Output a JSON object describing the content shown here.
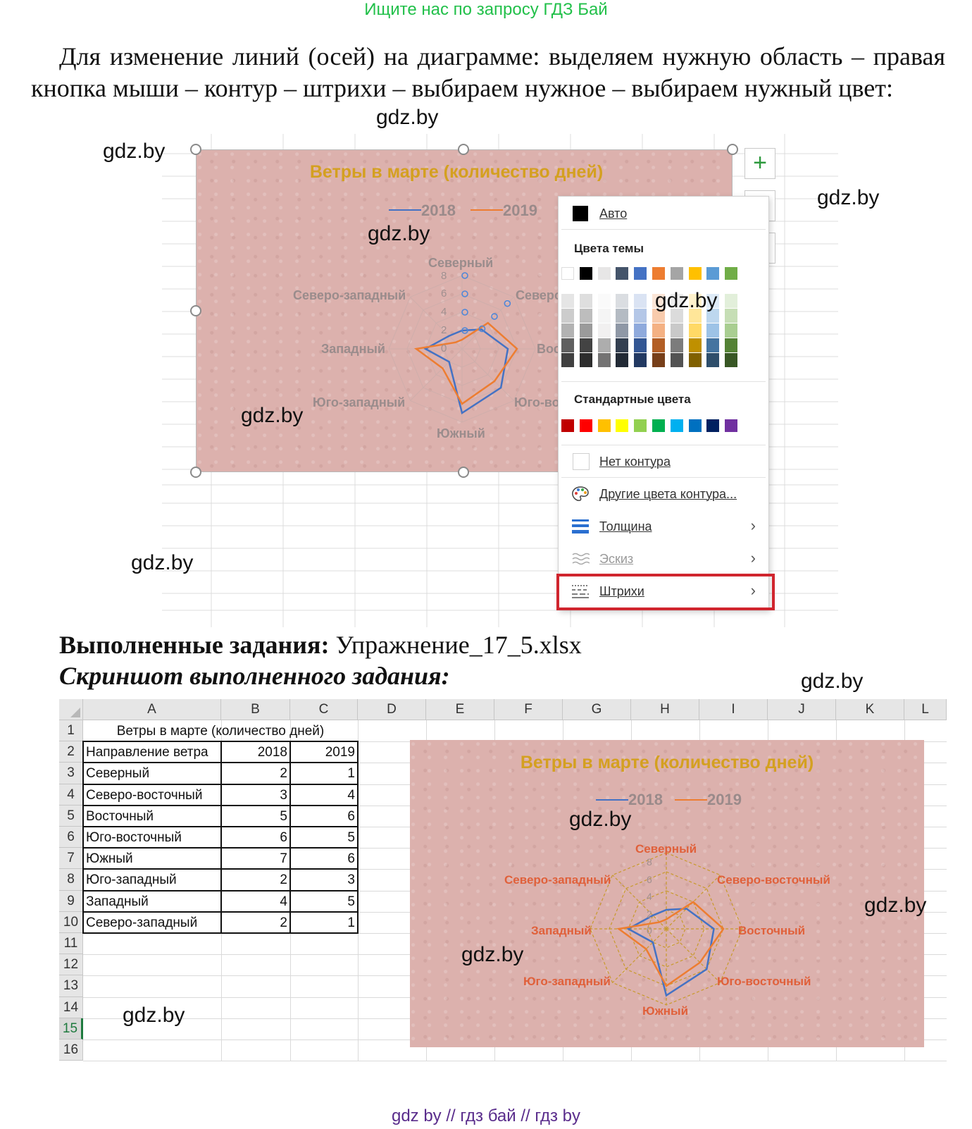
{
  "top_note": "Ищите нас по запросу ГДЗ Бай",
  "paragraph": "Для изменение линий (осей) на диаграмме: выделяем нужную область – правая кнопка мыши – контур – штрихи – выбираем нужное – выбираем нужный цвет:",
  "watermark": "gdz.by",
  "chart1": {
    "title": "Ветры в марте (количество дней)",
    "legend": [
      "2018",
      "2019"
    ],
    "axis_labels": [
      "Северный",
      "Северо-восточный",
      "Восточный",
      "Юго-восточный",
      "Южный",
      "Юго-западный",
      "Западный",
      "Северо-западный"
    ],
    "axis_labels_visible": [
      "Северный",
      "Северо",
      "Вос",
      "Юго-во",
      "Южный",
      "Юго-западный",
      "Западный",
      "Северо-западный"
    ],
    "ticks": [
      "0",
      "2",
      "4",
      "6",
      "8"
    ]
  },
  "menu": {
    "auto": "Авто",
    "theme_colors_title": "Цвета темы",
    "standard_colors_title": "Стандартные цвета",
    "no_outline": "Нет контура",
    "more_colors": "Другие цвета контура...",
    "weight": "Толщина",
    "sketch": "Эскиз",
    "dashes": "Штрихи",
    "theme_top": [
      "#ffffff",
      "#000000",
      "#e7e6e6",
      "#44546a",
      "#4472c4",
      "#ed7d31",
      "#a5a5a5",
      "#ffc000",
      "#5b9bd5",
      "#70ad47"
    ],
    "standard": [
      "#c00000",
      "#ff0000",
      "#ffc000",
      "#ffff00",
      "#92d050",
      "#00b050",
      "#00b0f0",
      "#0070c0",
      "#002060",
      "#7030a0"
    ]
  },
  "done_label": "Выполненные задания:",
  "done_file": "Упражнение_17_5.xlsx",
  "screenshot_label": "Скриншот выполненного задания:",
  "sheet": {
    "columns": [
      "A",
      "B",
      "C",
      "D",
      "E",
      "F",
      "G",
      "H",
      "I",
      "J",
      "K",
      "L"
    ],
    "rows": [
      "1",
      "2",
      "3",
      "4",
      "5",
      "6",
      "7",
      "8",
      "9",
      "10",
      "11",
      "12",
      "13",
      "14",
      "15",
      "16"
    ],
    "title": "Ветры в марте (количество дней)",
    "header": [
      "Направление ветра",
      "2018",
      "2019"
    ],
    "data": [
      [
        "Северный",
        "2",
        "1"
      ],
      [
        "Северо-восточный",
        "3",
        "4"
      ],
      [
        "Восточный",
        "5",
        "6"
      ],
      [
        "Юго-восточный",
        "6",
        "5"
      ],
      [
        "Южный",
        "7",
        "6"
      ],
      [
        "Юго-западный",
        "2",
        "3"
      ],
      [
        "Западный",
        "4",
        "5"
      ],
      [
        "Северо-западный",
        "2",
        "1"
      ]
    ]
  },
  "chart2": {
    "title": "Ветры в марте (количество дней)",
    "legend": [
      "2018",
      "2019"
    ],
    "axis_labels": [
      "Северный",
      "Северо-восточный",
      "Восточный",
      "Юго-восточный",
      "Южный",
      "Юго-западный",
      "Западный",
      "Северо-западный"
    ],
    "ticks": [
      "0",
      "2",
      "4",
      "6",
      "8"
    ]
  },
  "chart_data": {
    "type": "radar",
    "title": "Ветры в марте (количество дней)",
    "categories": [
      "Северный",
      "Северо-восточный",
      "Восточный",
      "Юго-восточный",
      "Южный",
      "Юго-западный",
      "Западный",
      "Северо-западный"
    ],
    "series": [
      {
        "name": "2018",
        "values": [
          2,
          3,
          5,
          6,
          7,
          2,
          4,
          2
        ],
        "color": "#4472c4"
      },
      {
        "name": "2019",
        "values": [
          1,
          4,
          6,
          5,
          6,
          3,
          5,
          1
        ],
        "color": "#ed7d31"
      }
    ],
    "rlim": [
      0,
      8
    ],
    "ticks": [
      0,
      2,
      4,
      6,
      8
    ]
  },
  "footer": "gdz by  //  гдз бай  //  гдз by"
}
